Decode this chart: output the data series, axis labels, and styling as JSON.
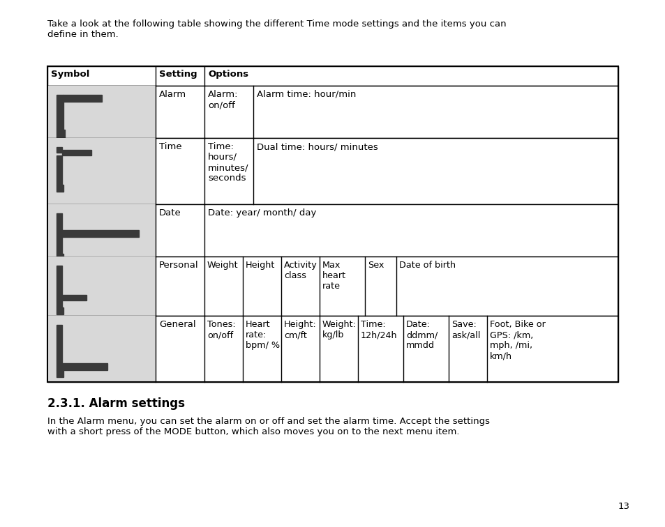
{
  "intro_text": "Take a look at the following table showing the different Time mode settings and the items you can\ndefine in them.",
  "header": [
    "Symbol",
    "Setting",
    "Options"
  ],
  "rows": [
    {
      "setting": "Alarm",
      "options_cols": [
        "Alarm:\non/off",
        "Alarm time: hour/min",
        "",
        "",
        "",
        "",
        "",
        ""
      ]
    },
    {
      "setting": "Time",
      "options_cols": [
        "Time:\nhours/\nminutes/\nseconds",
        "Dual time: hours/ minutes",
        "",
        "",
        "",
        "",
        "",
        ""
      ]
    },
    {
      "setting": "Date",
      "options_cols": [
        "Date: year/ month/ day",
        "",
        "",
        "",
        "",
        "",
        "",
        ""
      ]
    },
    {
      "setting": "Personal",
      "options_cols": [
        "Weight",
        "Height",
        "Activity\nclass",
        "Max\nheart\nrate",
        "Sex",
        "Date of birth",
        "",
        ""
      ]
    },
    {
      "setting": "General",
      "options_cols": [
        "Tones:\non/off",
        "Heart\nrate:\nbpm/ %",
        "Height:\ncm/ft",
        "Weight:\nkg/lb",
        "Time:\n12h/24h",
        "Date:\nddmm/\nmmdd",
        "Save:\nask/all",
        "Foot, Bike or\nGPS: /km,\nmph, /mi,\nkm/h"
      ]
    }
  ],
  "section_title": "2.3.1. Alarm settings",
  "body_text": "In the Alarm menu, you can set the alarm on or off and set the alarm time. Accept the settings\nwith a short press of the MODE button, which also moves you on to the next menu item.",
  "page_number": "13",
  "bg_color": "#ffffff",
  "table_bg": "#e8e8e8",
  "symbol_bg": "#d8d8d8",
  "dark_color": "#3a3a3a",
  "text_color": "#000000",
  "header_border": "#000000"
}
